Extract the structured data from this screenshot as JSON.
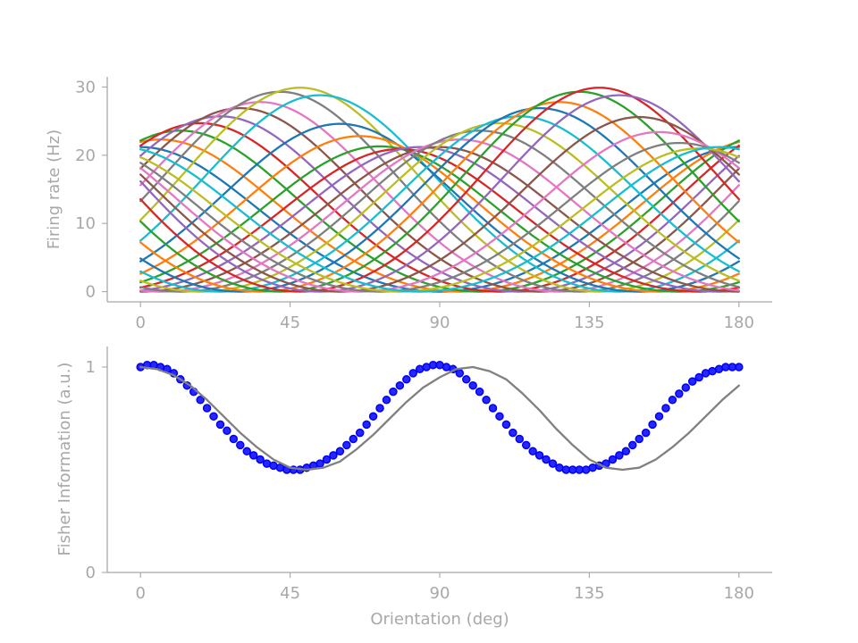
{
  "chart_data": [
    {
      "type": "line",
      "title": "",
      "xlabel": "",
      "ylabel": "Firing rate (Hz)",
      "xlim": [
        -10,
        190
      ],
      "ylim": [
        -1.5,
        31.5
      ],
      "xticks": [
        0,
        45,
        90,
        135,
        180
      ],
      "xtick_labels": [
        "0",
        "45",
        "90",
        "135",
        "180"
      ],
      "yticks": [
        0,
        10,
        20,
        30
      ],
      "ytick_labels": [
        "0",
        "10",
        "20",
        "30"
      ],
      "grid": false,
      "legend": "none",
      "model": "rectified von Mises tuning: rate = max(0, amplitude * (exp(kappa*(cos(2*(theta - preferred)) - 1)) - baseline) / (1 - baseline))",
      "kappa": 0.4,
      "baseline": 0.25,
      "colors": [
        "#1f77b4",
        "#ff7f0e",
        "#2ca02c",
        "#d62728",
        "#9467bd",
        "#8c564b",
        "#e377c2",
        "#7f7f7f",
        "#bcbd22",
        "#17becf"
      ],
      "series": [
        {
          "preferred": 0,
          "amplitude": 21.2
        },
        {
          "preferred": 6,
          "amplitude": 22.3
        },
        {
          "preferred": 12,
          "amplitude": 23.6
        },
        {
          "preferred": 18,
          "amplitude": 24.7
        },
        {
          "preferred": 24,
          "amplitude": 25.7
        },
        {
          "preferred": 30,
          "amplitude": 26.9
        },
        {
          "preferred": 36,
          "amplitude": 27.8
        },
        {
          "preferred": 42,
          "amplitude": 29.3
        },
        {
          "preferred": 48,
          "amplitude": 29.9
        },
        {
          "preferred": 54,
          "amplitude": 28.8
        },
        {
          "preferred": 60,
          "amplitude": 24.6
        },
        {
          "preferred": 66,
          "amplitude": 22.8
        },
        {
          "preferred": 72,
          "amplitude": 21.3
        },
        {
          "preferred": 78,
          "amplitude": 20.9
        },
        {
          "preferred": 84,
          "amplitude": 21.2
        },
        {
          "preferred": 90,
          "amplitude": 21.2
        },
        {
          "preferred": 96,
          "amplitude": 22.3
        },
        {
          "preferred": 102,
          "amplitude": 23.6
        },
        {
          "preferred": 108,
          "amplitude": 24.7
        },
        {
          "preferred": 114,
          "amplitude": 25.7
        },
        {
          "preferred": 120,
          "amplitude": 26.9
        },
        {
          "preferred": 126,
          "amplitude": 27.8
        },
        {
          "preferred": 132,
          "amplitude": 29.3
        },
        {
          "preferred": 138,
          "amplitude": 29.9
        },
        {
          "preferred": 144,
          "amplitude": 28.8
        },
        {
          "preferred": 150,
          "amplitude": 25.6
        },
        {
          "preferred": 156,
          "amplitude": 23.4
        },
        {
          "preferred": 162,
          "amplitude": 21.8
        },
        {
          "preferred": 168,
          "amplitude": 21.0
        },
        {
          "preferred": 174,
          "amplitude": 21.2
        }
      ]
    },
    {
      "type": "line",
      "title": "",
      "xlabel": "Orientation (deg)",
      "ylabel": "Fisher Information (a.u.)",
      "xlim": [
        -10,
        190
      ],
      "ylim": [
        0,
        1.1
      ],
      "xticks": [
        0,
        45,
        90,
        135,
        180
      ],
      "xtick_labels": [
        "0",
        "45",
        "90",
        "135",
        "180"
      ],
      "yticks": [
        0,
        1
      ],
      "ytick_labels": [
        "0",
        "1"
      ],
      "grid": false,
      "legend": "none",
      "series": [
        {
          "kind": "markers",
          "color": "#0000ff",
          "x": [
            0,
            2,
            4,
            6,
            8,
            10,
            12,
            14,
            16,
            18,
            20,
            22,
            24,
            26,
            28,
            30,
            32,
            34,
            36,
            38,
            40,
            42,
            44,
            46,
            48,
            50,
            52,
            54,
            56,
            58,
            60,
            62,
            64,
            66,
            68,
            70,
            72,
            74,
            76,
            78,
            80,
            82,
            84,
            86,
            88,
            90,
            92,
            94,
            96,
            98,
            100,
            102,
            104,
            106,
            108,
            110,
            112,
            114,
            116,
            118,
            120,
            122,
            124,
            126,
            128,
            130,
            132,
            134,
            136,
            138,
            140,
            142,
            144,
            146,
            148,
            150,
            152,
            154,
            156,
            158,
            160,
            162,
            164,
            166,
            168,
            170,
            172,
            174,
            176,
            178,
            180
          ],
          "y": [
            1.0,
            1.01,
            1.01,
            1.0,
            0.99,
            0.97,
            0.94,
            0.91,
            0.88,
            0.84,
            0.8,
            0.76,
            0.72,
            0.69,
            0.65,
            0.62,
            0.59,
            0.57,
            0.55,
            0.53,
            0.52,
            0.51,
            0.5,
            0.5,
            0.5,
            0.51,
            0.52,
            0.53,
            0.55,
            0.57,
            0.59,
            0.62,
            0.65,
            0.68,
            0.72,
            0.76,
            0.8,
            0.84,
            0.88,
            0.91,
            0.94,
            0.97,
            0.99,
            1.0,
            1.01,
            1.01,
            1.0,
            0.99,
            0.97,
            0.94,
            0.91,
            0.88,
            0.84,
            0.8,
            0.76,
            0.72,
            0.68,
            0.65,
            0.62,
            0.59,
            0.57,
            0.55,
            0.53,
            0.51,
            0.5,
            0.5,
            0.5,
            0.5,
            0.51,
            0.52,
            0.53,
            0.55,
            0.57,
            0.59,
            0.62,
            0.65,
            0.68,
            0.72,
            0.76,
            0.8,
            0.84,
            0.87,
            0.9,
            0.93,
            0.95,
            0.97,
            0.98,
            0.99,
            1.0,
            1.0,
            1.0
          ]
        },
        {
          "kind": "line",
          "color": "#808080",
          "x": [
            0,
            5,
            10,
            15,
            20,
            25,
            30,
            35,
            40,
            45,
            50,
            55,
            60,
            65,
            70,
            75,
            80,
            85,
            90,
            95,
            100,
            105,
            110,
            115,
            120,
            125,
            130,
            135,
            140,
            145,
            150,
            155,
            160,
            165,
            170,
            175,
            180
          ],
          "y": [
            1.0,
            0.99,
            0.96,
            0.91,
            0.84,
            0.76,
            0.68,
            0.61,
            0.55,
            0.51,
            0.5,
            0.51,
            0.54,
            0.6,
            0.67,
            0.75,
            0.83,
            0.9,
            0.95,
            0.99,
            1.0,
            0.98,
            0.94,
            0.87,
            0.79,
            0.7,
            0.62,
            0.55,
            0.51,
            0.5,
            0.51,
            0.55,
            0.61,
            0.68,
            0.76,
            0.84,
            0.91
          ]
        }
      ]
    }
  ]
}
